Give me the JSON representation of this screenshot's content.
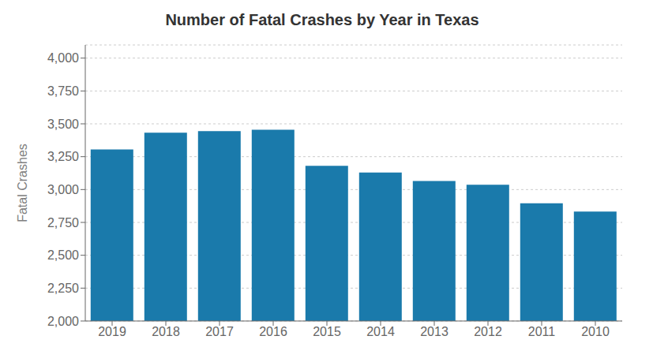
{
  "chart_data": {
    "type": "bar",
    "title": "Number of Fatal Crashes by Year in Texas",
    "ylabel": "Fatal Crashes",
    "categories": [
      "2019",
      "2018",
      "2017",
      "2016",
      "2015",
      "2014",
      "2013",
      "2012",
      "2011",
      "2010"
    ],
    "values": [
      3305,
      3432,
      3445,
      3455,
      3180,
      3130,
      3065,
      3037,
      2895,
      2832
    ],
    "color": "#1a7aab",
    "ylim": [
      2000,
      4100
    ],
    "yticks": [
      {
        "value": 2000,
        "label": "2,000"
      },
      {
        "value": 2250,
        "label": "2,250"
      },
      {
        "value": 2500,
        "label": "2,500"
      },
      {
        "value": 2750,
        "label": "2,750"
      },
      {
        "value": 3000,
        "label": "3,000"
      },
      {
        "value": 3250,
        "label": "3,250"
      },
      {
        "value": 3500,
        "label": "3,500"
      },
      {
        "value": 3750,
        "label": "3,750"
      },
      {
        "value": 4000,
        "label": "4,000"
      }
    ],
    "grid": true
  }
}
